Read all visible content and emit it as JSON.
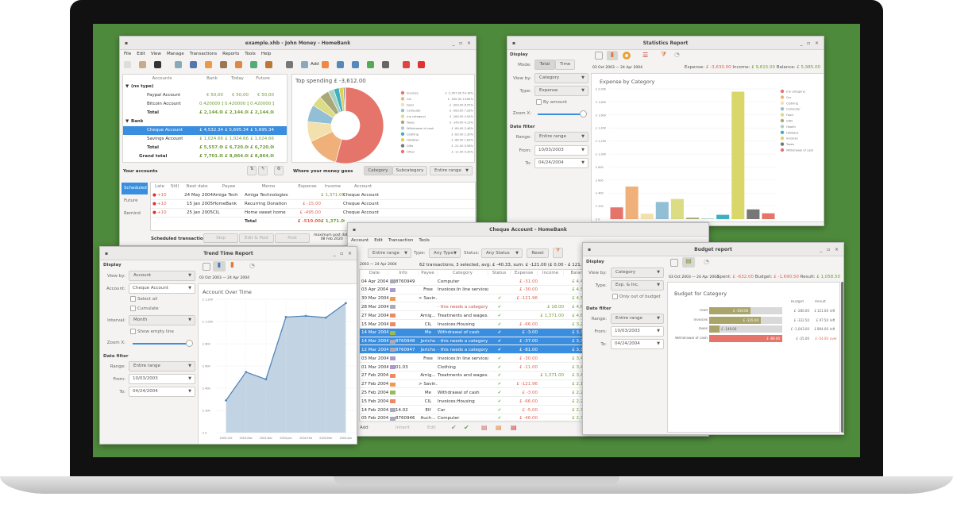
{
  "colors": {
    "screen": "#4e8a3c",
    "selection": "#3a8ee0",
    "income": "#6f9d33",
    "expense": "#e06450"
  },
  "main": {
    "title": "example.xhb - John Money - HomeBank",
    "menu": [
      "File",
      "Edit",
      "View",
      "Manage",
      "Transactions",
      "Reports",
      "Tools",
      "Help"
    ],
    "toolbar_add": "Add",
    "accounts": {
      "headers": [
        "Accounts",
        "Bank",
        "Today",
        "Future"
      ],
      "rows": [
        {
          "name": "(no type)",
          "kind": "group",
          "v": [
            "",
            "",
            ""
          ]
        },
        {
          "name": "Paypal Account",
          "kind": "acc",
          "v": [
            "€ 50,00",
            "€ 50,00",
            "€ 50,00"
          ]
        },
        {
          "name": "Bitcoin Account",
          "kind": "acc",
          "v": [
            "0.420000 ₿",
            "0.420000 ₿",
            "0.420000 ₿"
          ]
        },
        {
          "name": "Total",
          "kind": "total",
          "v": [
            "£ 2,144.08",
            "£ 2,144.08",
            "£ 2,144.08"
          ]
        },
        {
          "name": "Bank",
          "kind": "group",
          "v": [
            "",
            "",
            ""
          ]
        },
        {
          "name": "Cheque Account",
          "kind": "sel",
          "v": [
            "£ 4,532.34",
            "£ 5,695.34",
            "£ 5,695.34"
          ]
        },
        {
          "name": "Savings Account",
          "kind": "acc",
          "v": [
            "£ 1,024.66",
            "£ 1,024.66",
            "£ 1,024.66"
          ]
        },
        {
          "name": "Total",
          "kind": "total",
          "v": [
            "£ 5,557.00",
            "£ 6,720.00",
            "£ 6,720.00"
          ]
        },
        {
          "name": "Grand total",
          "kind": "grand",
          "v": [
            "£ 7,701.08",
            "£ 8,864.08",
            "£ 8,864.08"
          ]
        }
      ],
      "footer": "Your accounts"
    },
    "spending": {
      "title": "Top spending £ -3,612.00",
      "footer": "Where your money goes",
      "tabs": [
        "Category",
        "Subcategory"
      ],
      "range": "Entire range"
    },
    "scheduled": {
      "tabs": [
        "Scheduled",
        "Future",
        "Remind"
      ],
      "headers": [
        "Late",
        "Still",
        "Next date",
        "Payee",
        "Memo",
        "Expense",
        "Income",
        "Account"
      ],
      "rows": [
        [
          "+10",
          "",
          "24 May 2004",
          "Amiga Tech",
          "Amiga Technologies",
          "",
          "£ 1,371.00",
          "Cheque Account"
        ],
        [
          "+10",
          "",
          "15 Jan 2005",
          "HomeBank",
          "Recurring Donation",
          "£ -15.00",
          "",
          "Cheque Account"
        ],
        [
          "+10",
          "",
          "25 Jan 2005",
          "CIL",
          "Home sweet home",
          "£ -495.00",
          "",
          "Cheque Account"
        ]
      ],
      "total": [
        "Total",
        "£ -510.00",
        "£ 1,371.00"
      ],
      "footer": "Scheduled transactions",
      "buttons": [
        "Skip",
        "Edit & Post",
        "Post"
      ],
      "max_post": "maximum post date",
      "max_post_date": "08 Feb 2020"
    }
  },
  "chart_data": [
    {
      "type": "pie",
      "title": "Top spending £ -3,612.00",
      "categories": [
        "Invoices",
        "Car",
        "Food",
        "Computer",
        "(no category)",
        "Taxes",
        "Withdrawal of cash",
        "Clothing",
        "Holidays",
        "Gifts",
        "Other"
      ],
      "values": [
        1957,
        500,
        309,
        263,
        164,
        149,
        89,
        83,
        66,
        21,
        11
      ],
      "labels": [
        "£ -1,957.00 54.18%",
        "£ -500.00 13.84%",
        "£ -309.00 8.55%",
        "£ -263.00 7.28%",
        "£ -164.00 4.54%",
        "£ -149.00 4.13%",
        "£ -89.00 2.46%",
        "£ -83.00 2.30%",
        "£ -66.00 1.83%",
        "£ -21.00 0.58%",
        "£ -11.00 0.30%"
      ],
      "colors": [
        "#e5756a",
        "#f0b07a",
        "#f2e0ad",
        "#92bfd6",
        "#dcdc85",
        "#a9a877",
        "#a8d1c4",
        "#3fb0bf",
        "#ddd05a",
        "#777777",
        "#e5756a"
      ]
    },
    {
      "type": "bar",
      "title": "Expense by Category",
      "ylim": [
        0,
        2000
      ],
      "yticks": [
        "£ 0",
        "£ 200",
        "£ 400",
        "£ 600",
        "£ 800",
        "£ 1,000",
        "£ 1,200",
        "£ 1,400",
        "£ 1,600",
        "£ 1,800",
        "£ 2,000"
      ],
      "categories": [
        "(no category)",
        "Car",
        "Clothing",
        "Computer",
        "Food",
        "Gifts",
        "Health",
        "Holidays",
        "Invoices",
        "Taxes",
        "Withdrawal of cash"
      ],
      "values": [
        180,
        500,
        83,
        263,
        309,
        21,
        10,
        66,
        1957,
        149,
        89
      ],
      "colors": [
        "#e5756a",
        "#f0b07a",
        "#f2e0ad",
        "#92bfd6",
        "#dcdc85",
        "#a9a877",
        "#a8d1c4",
        "#3fb0bf",
        "#d9d76a",
        "#777777",
        "#e5756a"
      ]
    },
    {
      "type": "area",
      "title": "Account Over Time",
      "ylim": [
        0,
        1200
      ],
      "yticks": [
        "£ 0",
        "£ 200",
        "£ 400",
        "£ 600",
        "£ 800",
        "£ 1,000",
        "£ 1,200"
      ],
      "x": [
        "2003-Oct",
        "2003-Nov",
        "2003-Dec",
        "2004-Jan",
        "2004-Feb",
        "2004-Mar",
        "2004-Apr"
      ],
      "values": [
        290,
        545,
        480,
        1040,
        1050,
        1035,
        1165
      ]
    },
    {
      "type": "bar",
      "title": "Budget for Category",
      "orientation": "horizontal",
      "headers": [
        "Budget",
        "Result"
      ],
      "rows": [
        {
          "cat": "Food",
          "spent": 159,
          "spent_label": "£ -159.00",
          "budget": 280,
          "budget_label": "£ -280.00",
          "result": "£ 121.00",
          "status": "left"
        },
        {
          "cat": "Invoices",
          "spent": 235,
          "spent_label": "£ -235.00",
          "budget": 332.5,
          "budget_label": "£ -332.50",
          "result": "£ 97.50",
          "status": "left"
        },
        {
          "cat": "Taxes",
          "spent": 149,
          "spent_label": "£ -149.00",
          "budget": 1043,
          "budget_label": "£ -1,043.00",
          "result": "£ 894.00",
          "status": "left"
        },
        {
          "cat": "Withdrawal of cash",
          "spent": 89,
          "spent_label": "£ -89.00",
          "budget": 35,
          "budget_label": "£ -35.00",
          "result": "£ -54.00",
          "status": "over"
        }
      ]
    }
  ],
  "stats": {
    "title": "Statistics Report",
    "display": "Display",
    "mode_label": "Mode:",
    "modes": [
      "Total",
      "Time"
    ],
    "viewby_label": "View by:",
    "viewby": "Category",
    "type_label": "Type:",
    "type": "Expense",
    "by_amount": "By amount",
    "zoom_label": "Zoom X:",
    "datefilter": "Date filter",
    "range_label": "Range:",
    "range": "Entire range",
    "from_label": "From:",
    "from": "10/03/2003",
    "to_label": "To:",
    "to": "04/24/2004",
    "period": "03 Oct 2003 — 24 Apr 2004",
    "expense_label": "Expense:",
    "expense": "£ -3,630.00",
    "income_label": "Income:",
    "income": "£ 9,615.00",
    "balance_label": "Balance:",
    "balance": "£ 5,985.00"
  },
  "cheque": {
    "title": "Cheque Account - HomeBank",
    "menu": [
      "Account",
      "Edit",
      "Transaction",
      "Tools"
    ],
    "range": "Entire range",
    "type_label": "Type:",
    "type": "Any Type",
    "status_label": "Status:",
    "status": "Any Status",
    "reset": "Reset",
    "period": "2003 — 24 Apr 2004",
    "summary": "62 transactions, 3 selected, avg: £ -40.33, sum: £ -121.00 (£ 0.00 - £ 121.00)",
    "headers": [
      "Date",
      "Info",
      "Payee",
      "Category",
      "Status",
      "Expense",
      "Income",
      "Balance"
    ],
    "rows": [
      [
        "04 Apr 2004",
        "8760949",
        "",
        "Computer",
        "",
        "£ -31.00",
        "",
        "£ 4,471.34",
        0
      ],
      [
        "03 Apr 2004",
        "",
        "Free",
        "Invoices:In line service/...",
        "",
        "£ -30.00",
        "",
        "£ 4,502.34",
        0
      ],
      [
        "30 Mar 2004",
        "",
        "> Savin...",
        "",
        "✔",
        "£ -121.96",
        "",
        "£ 4,532.34",
        0
      ],
      [
        "28 Mar 2004",
        "",
        "",
        "- this needs a category -",
        "✔",
        "",
        "£ 18.00",
        "£ 4,654.30",
        0
      ],
      [
        "27 Mar 2004",
        "",
        "Amig...",
        "Treatments and wages...",
        "✔",
        "",
        "£ 1,371.00",
        "£ 4,636.30",
        0
      ],
      [
        "15 Mar 2004",
        "",
        "CIL",
        "Invoices:Housing",
        "✔",
        "£ -66.00",
        "",
        "£ 3,265.30",
        0
      ],
      [
        "14 Mar 2004",
        "",
        "Me",
        "Withdrawal of cash",
        "✔",
        "£ -3.00",
        "",
        "£ 3,331.30",
        1
      ],
      [
        "14 Mar 2004",
        "8760948",
        "Jericho",
        "- this needs a category -",
        "✔",
        "£ -37.00",
        "",
        "£ 3,334.30",
        1
      ],
      [
        "12 Mar 2004",
        "8760947",
        "Jericho",
        "- this needs a category -",
        "✔",
        "£ -81.00",
        "",
        "£ 3,371.30",
        1
      ],
      [
        "03 Mar 2004",
        "",
        "Free",
        "Invoices:In line service/...",
        "✔",
        "£ -30.00",
        "",
        "£ 3,452.30",
        0
      ],
      [
        "01 Mar 2004",
        "01.03",
        "",
        "Clothing",
        "✔",
        "£ -11.00",
        "",
        "£ 3,482.30",
        0
      ],
      [
        "27 Feb 2004",
        "",
        "Amig...",
        "Treatments and wages...",
        "✔",
        "",
        "£ 1,371.00",
        "£ 3,493.30",
        0
      ],
      [
        "27 Feb 2004",
        "",
        "> Savin...",
        "",
        "✔",
        "£ -121.96",
        "",
        "£ 2,122.30",
        0
      ],
      [
        "25 Feb 2004",
        "",
        "Me",
        "Withdrawal of cash",
        "✔",
        "£ -3.00",
        "",
        "£ 2,244.26",
        0
      ],
      [
        "15 Feb 2004",
        "",
        "CIL",
        "Invoices:Housing",
        "✔",
        "£ -66.00",
        "",
        "£ 2,247.26",
        0
      ],
      [
        "14 Feb 2004",
        "14.02",
        "Elf",
        "Car",
        "✔",
        "£ -5.00",
        "",
        "£ 2,313.26",
        0
      ],
      [
        "05 Feb 2004",
        "8760946",
        "Auch...",
        "Computer",
        "✔",
        "£ -46.00",
        "",
        "£ 2,318.26",
        0
      ]
    ],
    "bottom": [
      "Add",
      "Inherit",
      "Edit"
    ]
  },
  "trend": {
    "title": "Trend Time Report",
    "display": "Display",
    "viewby_label": "View by:",
    "viewby": "Account",
    "account_label": "Account:",
    "account": "Cheque Account",
    "select_all": "Select all",
    "cumulate": "Cumulate",
    "interval_label": "Interval:",
    "interval": "Month",
    "show_empty": "Show empty line",
    "zoom_label": "Zoom X:",
    "datefilter": "Date filter",
    "range_label": "Range:",
    "range": "Entire range",
    "from_label": "From:",
    "from": "10/03/2003",
    "to_label": "To:",
    "to": "04/24/2004",
    "period": "03 Oct 2003 — 24 Apr 2004"
  },
  "budget": {
    "title": "Budget report",
    "display": "Display",
    "viewby_label": "View by:",
    "viewby": "Category",
    "type_label": "Type:",
    "type": "Exp. & Inc.",
    "only_out": "Only out of budget",
    "datefilter": "Date filter",
    "range_label": "Range:",
    "range": "Entire range",
    "from_label": "From:",
    "from": "10/03/2003",
    "to_label": "To:",
    "to": "04/24/2004",
    "period": "03 Oct 2003 — 24 Apr 2004",
    "spent_label": "Spent:",
    "spent": "£ -632.00",
    "budget_label": "Budget:",
    "budget": "£ -1,690.50",
    "result_label": "Result:",
    "result": "£ 1,058.50"
  }
}
